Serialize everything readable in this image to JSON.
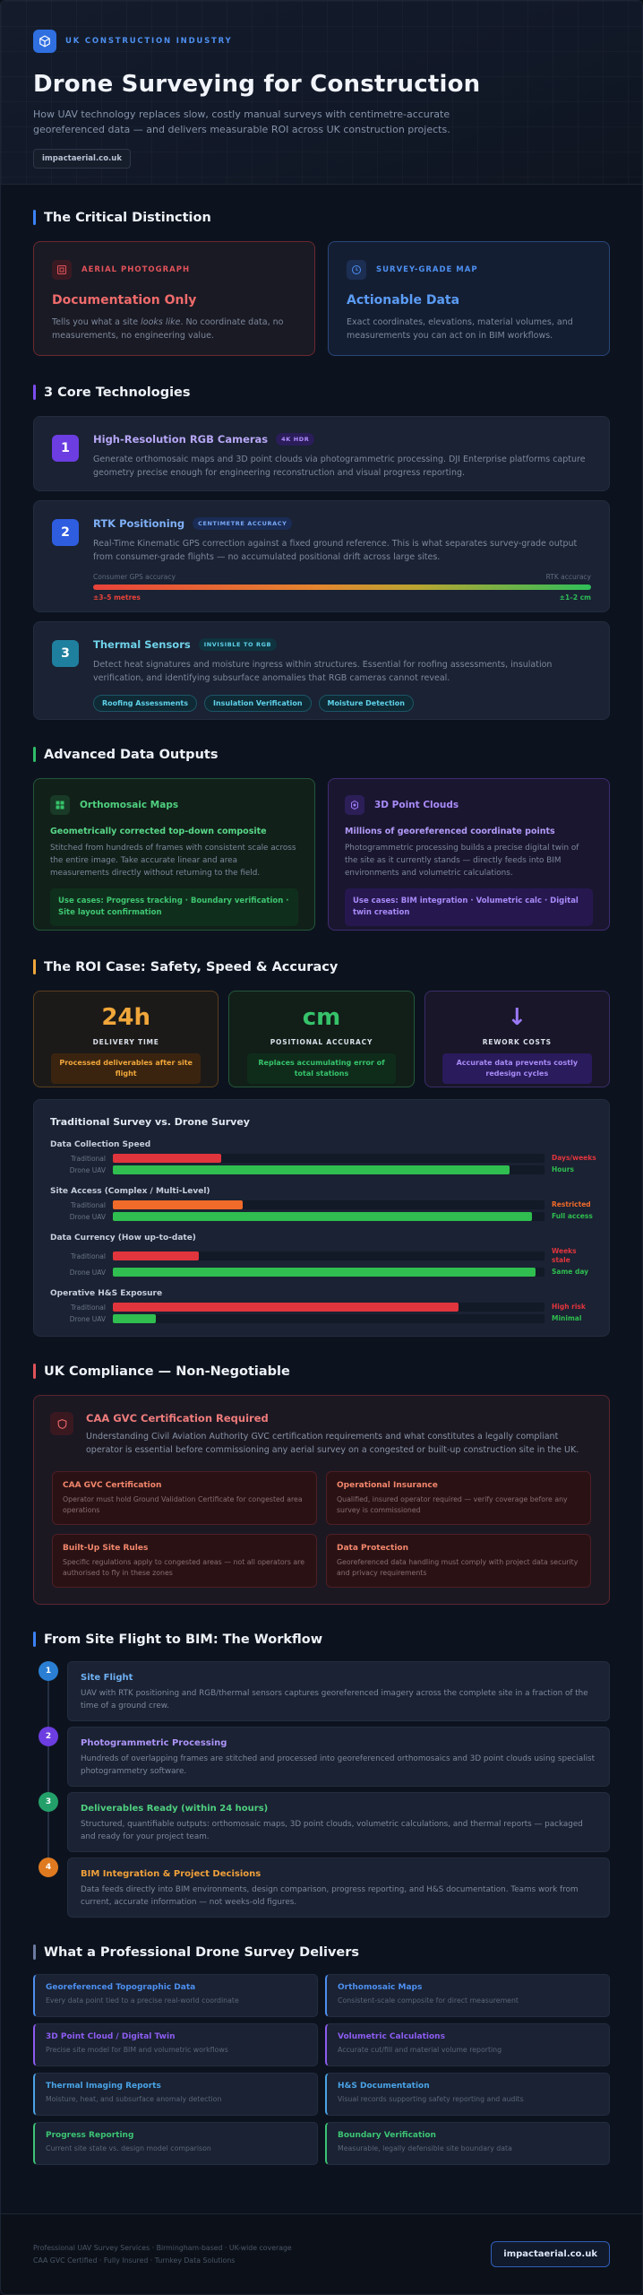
{
  "header": {
    "industry": "UK CONSTRUCTION INDUSTRY",
    "title": "Drone Surveying for Construction",
    "subtitle": "How UAV technology replaces slow, costly manual surveys with centimetre-accurate georeferenced data — and delivers measurable ROI across UK construction projects.",
    "domain": "impactaerial.co.uk"
  },
  "distinction": {
    "title": "The Critical Distinction",
    "left": {
      "label": "AERIAL PHOTOGRAPH",
      "title": "Documentation Only",
      "text_pre": "Tells you what a site ",
      "text_em": "looks like",
      "text_post": ". No coordinate data, no measurements, no engineering value.",
      "icon": "image-icon",
      "color": "#e0525a"
    },
    "right": {
      "label": "SURVEY-GRADE MAP",
      "title": "Actionable Data",
      "text": "Exact coordinates, elevations, material volumes, and measurements you can act on in BIM workflows.",
      "icon": "target-icon",
      "color": "#4d8ff0"
    }
  },
  "technologies": {
    "title": "3 Core Technologies",
    "items": [
      {
        "num": "1",
        "title": "High-Resolution RGB Cameras",
        "tag": "4K HDR",
        "text": "Generate orthomosaic maps and 3D point clouds via photogrammetric processing. DJI Enterprise platforms capture geometry precise enough for engineering reconstruction and visual progress reporting.",
        "color": "#6c3de0"
      },
      {
        "num": "2",
        "title": "RTK Positioning",
        "tag": "CENTIMETRE ACCURACY",
        "text": "Real-Time Kinematic GPS correction against a fixed ground reference. This is what separates survey-grade output from consumer-grade flights — no accumulated positional drift across large sites.",
        "acc_left": "Consumer GPS accuracy",
        "acc_right": "RTK accuracy",
        "acc_left_val": "±3–5 metres",
        "acc_right_val": "±1–2 cm",
        "color": "#2f5de0"
      },
      {
        "num": "3",
        "title": "Thermal Sensors",
        "tag": "INVISIBLE TO RGB",
        "text": "Detect heat signatures and moisture ingress within structures. Essential for roofing assessments, insulation verification, and identifying subsurface anomalies that RGB cameras cannot reveal.",
        "pills": [
          "Roofing Assessments",
          "Insulation Verification",
          "Moisture Detection"
        ],
        "color": "#1f8aa6"
      }
    ]
  },
  "outputs": {
    "title": "Advanced Data Outputs",
    "left": {
      "title": "Orthomosaic Maps",
      "sub": "Geometrically corrected top-down composite",
      "text": "Stitched from hundreds of frames with consistent scale across the entire image. Take accurate linear and area measurements directly without returning to the field.",
      "use": "Use cases: Progress tracking · Boundary verification · Site layout confirmation",
      "icon": "map-grid-icon"
    },
    "right": {
      "title": "3D Point Clouds",
      "sub": "Millions of georeferenced coordinate points",
      "text": "Photogrammetric processing builds a precise digital twin of the site as it currently stands — directly feeds into BIM environments and volumetric calculations.",
      "use": "Use cases: BIM integration · Volumetric calc · Digital twin creation",
      "icon": "point-cloud-icon"
    }
  },
  "roi": {
    "title": "The ROI Case: Safety, Speed & Accuracy",
    "stats": [
      {
        "big": "24h",
        "label": "DELIVERY TIME",
        "desc": "Processed deliverables after site flight",
        "color": "#f0a63a"
      },
      {
        "big": "cm",
        "label": "POSITIONAL ACCURACY",
        "desc": "Replaces accumulating error of total stations",
        "color": "#36c36a"
      },
      {
        "big": "↓",
        "label": "REWORK COSTS",
        "desc": "Accurate data prevents costly redesign cycles",
        "color": "#9a78f5"
      }
    ],
    "comparison": {
      "title": "Traditional Survey vs. Drone Survey",
      "label_traditional": "Traditional",
      "label_drone": "Drone UAV",
      "groups": [
        {
          "name": "Data Collection Speed",
          "trad": 0.25,
          "drone": 0.92,
          "trad_val": "Days/weeks",
          "drone_val": "Hours",
          "trad_color": "#e0353d"
        },
        {
          "name": "Site Access (Complex / Multi-Level)",
          "trad": 0.3,
          "drone": 0.97,
          "trad_val": "Restricted",
          "drone_val": "Full access",
          "trad_color": "#f06a2a"
        },
        {
          "name": "Data Currency (How up-to-date)",
          "trad": 0.2,
          "drone": 0.98,
          "trad_val": "Weeks stale",
          "drone_val": "Same day",
          "trad_color": "#e0353d"
        },
        {
          "name": "Operative H&S Exposure",
          "trad": 0.8,
          "drone": 0.1,
          "trad_val": "High risk",
          "drone_val": "Minimal",
          "trad_color": "#e0353d"
        }
      ]
    }
  },
  "compliance": {
    "title": "UK Compliance — Non-Negotiable",
    "head_title": "CAA GVC Certification Required",
    "head_text": "Understanding Civil Aviation Authority GVC certification requirements and what constitutes a legally compliant operator is essential before commissioning any aerial survey on a congested or built-up construction site in the UK.",
    "items": [
      {
        "title": "CAA GVC Certification",
        "text": "Operator must hold Ground Validation Certificate for congested area operations"
      },
      {
        "title": "Operational Insurance",
        "text": "Qualified, insured operator required — verify coverage before any survey is commissioned"
      },
      {
        "title": "Built-Up Site Rules",
        "text": "Specific regulations apply to congested areas — not all operators are authorised to fly in these zones"
      },
      {
        "title": "Data Protection",
        "text": "Georeferenced data handling must comply with project data security and privacy requirements"
      }
    ]
  },
  "workflow": {
    "title": "From Site Flight to BIM: The Workflow",
    "steps": [
      {
        "num": "1",
        "title": "Site Flight",
        "text": "UAV with RTK positioning and RGB/thermal sensors captures georeferenced imagery across the complete site in a fraction of the time of a ground crew.",
        "color": "#2a7fd4"
      },
      {
        "num": "2",
        "title": "Photogrammetric Processing",
        "text": "Hundreds of overlapping frames are stitched and processed into georeferenced orthomosaics and 3D point clouds using specialist photogrammetry software.",
        "color": "#6c3de0"
      },
      {
        "num": "3",
        "title": "Deliverables Ready (within 24 hours)",
        "text": "Structured, quantifiable outputs: orthomosaic maps, 3D point clouds, volumetric calculations, and thermal reports — packaged and ready for your project team.",
        "color": "#23a06a"
      },
      {
        "num": "4",
        "title": "BIM Integration & Project Decisions",
        "text": "Data feeds directly into BIM environments, design comparison, progress reporting, and H&S documentation. Teams work from current, accurate information — not weeks-old figures.",
        "color": "#e07a20"
      }
    ]
  },
  "deliverables": {
    "title": "What a Professional Drone Survey Delivers",
    "items": [
      {
        "title": "Georeferenced Topographic Data",
        "text": "Every data point tied to a precise real-world coordinate",
        "color": "#4d8ff0"
      },
      {
        "title": "Orthomosaic Maps",
        "text": "Consistent-scale composite for direct measurement",
        "color": "#4d8ff0"
      },
      {
        "title": "3D Point Cloud / Digital Twin",
        "text": "Precise site model for BIM and volumetric workflows",
        "color": "#8c5cf0"
      },
      {
        "title": "Volumetric Calculations",
        "text": "Accurate cut/fill and material volume reporting",
        "color": "#8c5cf0"
      },
      {
        "title": "Thermal Imaging Reports",
        "text": "Moisture, heat, and subsurface anomaly detection",
        "color": "#4aa3e6"
      },
      {
        "title": "H&S Documentation",
        "text": "Visual records supporting safety reporting and audits",
        "color": "#4aa3e6"
      },
      {
        "title": "Progress Reporting",
        "text": "Current site state vs. design model comparison",
        "color": "#3cc474"
      },
      {
        "title": "Boundary Verification",
        "text": "Measurable, legally defensible site boundary data",
        "color": "#3cc474"
      }
    ]
  },
  "footer": {
    "line1": "Professional UAV Survey Services · Birmingham-based · UK-wide coverage",
    "line2": "CAA GVC Certified · Fully Insured · Turnkey Data Solutions",
    "button": "impactaerial.co.uk"
  }
}
